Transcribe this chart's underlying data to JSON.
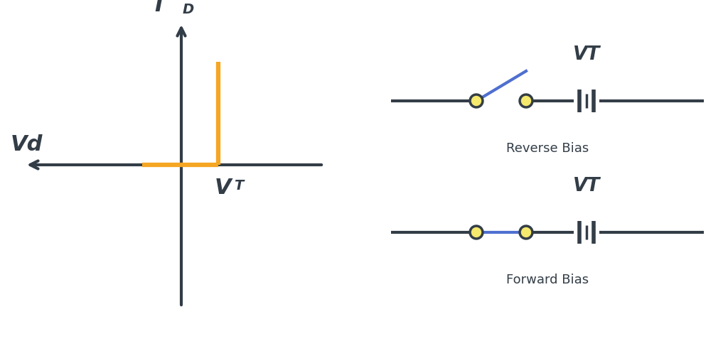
{
  "bg_color": "#ffffff",
  "axis_color": "#333d47",
  "graph_line_color": "#f5a623",
  "circuit_line_color": "#333d47",
  "switch_open_color": "#4f6fd0",
  "node_fill_color": "#f5e96e",
  "node_edge_color": "#333d47",
  "label_ID": "I",
  "label_ID_sub": "D",
  "label_Vd": "Vd",
  "label_VT_axis": "V",
  "label_VT_axis_sub": "T",
  "label_VT_circuit": "VT",
  "label_reverse": "Reverse Bias",
  "label_forward": "Forward Bias",
  "graph_lw": 4.5,
  "axis_lw": 3.0,
  "circ_lw": 3.0
}
